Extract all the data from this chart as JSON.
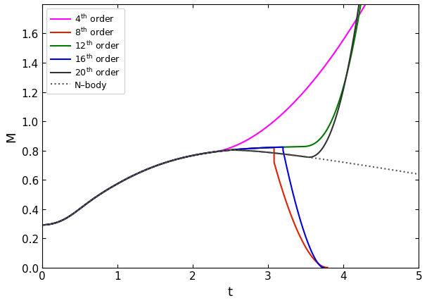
{
  "xlim": [
    0,
    5
  ],
  "ylim": [
    0,
    1.8
  ],
  "xlabel": "t",
  "ylabel": "M",
  "xticks": [
    0,
    1,
    2,
    3,
    4,
    5
  ],
  "yticks": [
    0,
    0.2,
    0.4,
    0.6,
    0.8,
    1.0,
    1.2,
    1.4,
    1.6
  ],
  "legend_entries": [
    {
      "label": "4$^{th}$ order",
      "color": "#ff00ff",
      "linestyle": "-"
    },
    {
      "label": "8$^{th}$ order",
      "color": "#dd2200",
      "linestyle": "-"
    },
    {
      "label": "12$^{th}$ order",
      "color": "#007700",
      "linestyle": "-"
    },
    {
      "label": "16$^{th}$ order",
      "color": "#0000dd",
      "linestyle": "-"
    },
    {
      "label": "20$^{th}$ order",
      "color": "#333333",
      "linestyle": "-"
    },
    {
      "label": "N-body",
      "color": "#555555",
      "linestyle": ":"
    }
  ],
  "linewidth": 1.5,
  "figsize": [
    6.07,
    4.31
  ],
  "dpi": 100
}
